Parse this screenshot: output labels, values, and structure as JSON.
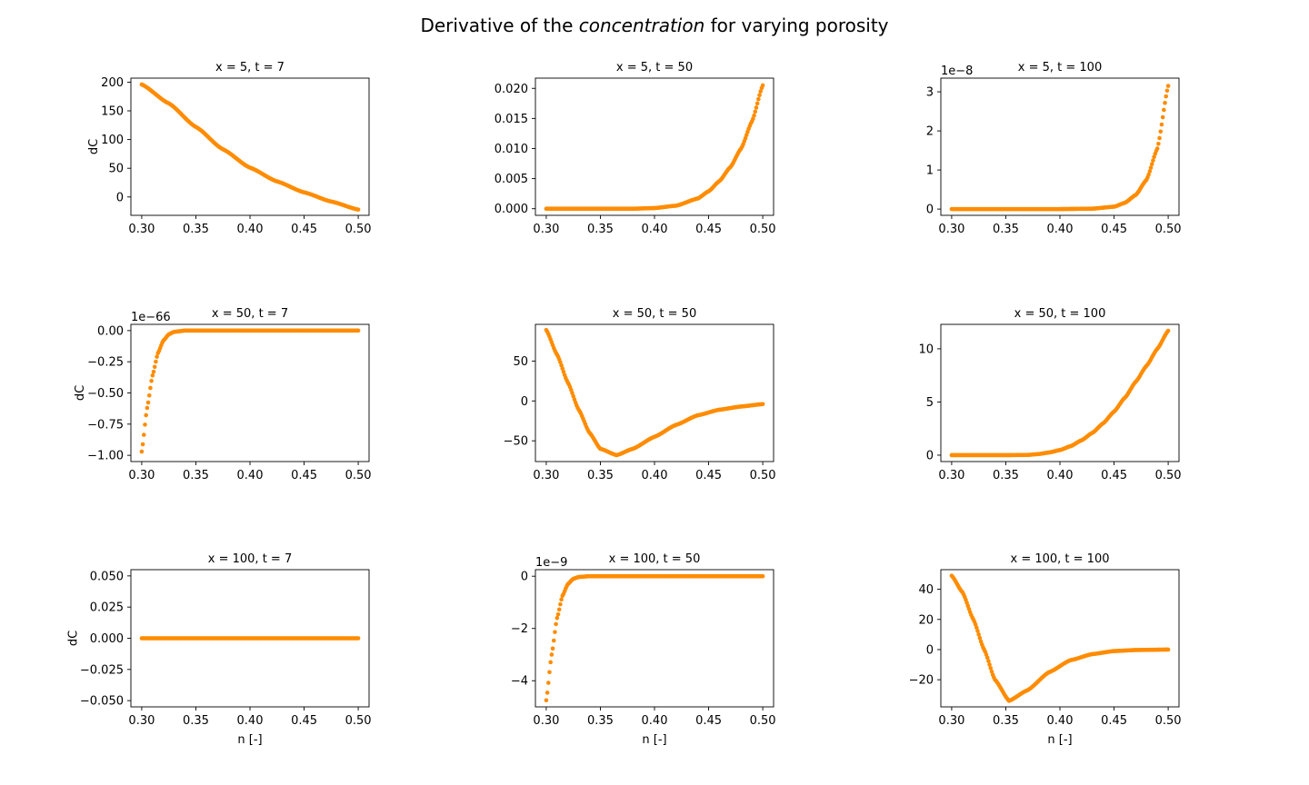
{
  "figure": {
    "title_before": "Derivative of the ",
    "title_emph": "concentration",
    "title_after": " for varying porosity"
  },
  "colors": {
    "marker": "#ff8c00",
    "axes": "#000000",
    "background": "#ffffff"
  },
  "chart_data": [
    {
      "type": "scatter",
      "title": "x = 5, t = 7",
      "xlabel": "",
      "ylabel": "dC",
      "xlim": [
        0.29,
        0.51
      ],
      "ylim": [
        -32,
        207
      ],
      "xticks": [
        0.3,
        0.35,
        0.4,
        0.45,
        0.5
      ],
      "xtick_labels": [
        "0.30",
        "0.35",
        "0.40",
        "0.45",
        "0.50"
      ],
      "yticks": [
        0,
        50,
        100,
        150,
        200
      ],
      "ytick_labels": [
        "0",
        "50",
        "100",
        "150",
        "200"
      ],
      "offset_text": "",
      "x": [
        0.3,
        0.325,
        0.35,
        0.375,
        0.4,
        0.425,
        0.45,
        0.475,
        0.5
      ],
      "y": [
        196,
        163,
        122,
        83,
        51,
        27,
        8,
        -8,
        -22
      ]
    },
    {
      "type": "scatter",
      "title": "x = 5, t = 50",
      "xlabel": "",
      "ylabel": "",
      "xlim": [
        0.29,
        0.51
      ],
      "ylim": [
        -0.0011,
        0.0217
      ],
      "xticks": [
        0.3,
        0.35,
        0.4,
        0.45,
        0.5
      ],
      "xtick_labels": [
        "0.30",
        "0.35",
        "0.40",
        "0.45",
        "0.50"
      ],
      "yticks": [
        0,
        0.005,
        0.01,
        0.015,
        0.02
      ],
      "ytick_labels": [
        "0.000",
        "0.005",
        "0.010",
        "0.015",
        "0.020"
      ],
      "offset_text": "",
      "x": [
        0.3,
        0.35,
        0.38,
        0.4,
        0.42,
        0.44,
        0.45,
        0.46,
        0.47,
        0.48,
        0.49,
        0.5
      ],
      "y": [
        0,
        0,
        0,
        0.0001,
        0.0005,
        0.0017,
        0.0029,
        0.0046,
        0.0069,
        0.01,
        0.0145,
        0.0205
      ]
    },
    {
      "type": "scatter",
      "title": "x = 5, t = 100",
      "xlabel": "",
      "ylabel": "",
      "xlim": [
        0.29,
        0.51
      ],
      "ylim": [
        -0.16,
        3.35
      ],
      "xticks": [
        0.3,
        0.35,
        0.4,
        0.45,
        0.5
      ],
      "xtick_labels": [
        "0.30",
        "0.35",
        "0.40",
        "0.45",
        "0.50"
      ],
      "yticks": [
        0,
        1,
        2,
        3
      ],
      "ytick_labels": [
        "0",
        "1",
        "2",
        "3"
      ],
      "offset_text": "1e−8",
      "x": [
        0.3,
        0.4,
        0.43,
        0.45,
        0.46,
        0.47,
        0.48,
        0.49,
        0.5
      ],
      "y": [
        0,
        0,
        0.01,
        0.06,
        0.16,
        0.36,
        0.75,
        1.55,
        3.15
      ]
    },
    {
      "type": "scatter",
      "title": "x = 50, t = 7",
      "xlabel": "",
      "ylabel": "dC",
      "xlim": [
        0.29,
        0.51
      ],
      "ylim": [
        -1.05,
        0.05
      ],
      "xticks": [
        0.3,
        0.35,
        0.4,
        0.45,
        0.5
      ],
      "xtick_labels": [
        "0.30",
        "0.35",
        "0.40",
        "0.45",
        "0.50"
      ],
      "yticks": [
        -1.0,
        -0.75,
        -0.5,
        -0.25,
        0.0
      ],
      "ytick_labels": [
        "−1.00",
        "−0.75",
        "−0.50",
        "−0.25",
        "0.00"
      ],
      "offset_text": "1e−66",
      "x": [
        0.3,
        0.305,
        0.31,
        0.315,
        0.32,
        0.325,
        0.33,
        0.34,
        0.5
      ],
      "y": [
        -0.97,
        -0.62,
        -0.36,
        -0.18,
        -0.08,
        -0.03,
        -0.01,
        0,
        0
      ]
    },
    {
      "type": "scatter",
      "title": "x = 50, t = 50",
      "xlabel": "",
      "ylabel": "",
      "xlim": [
        0.29,
        0.51
      ],
      "ylim": [
        -76,
        96
      ],
      "xticks": [
        0.3,
        0.35,
        0.4,
        0.45,
        0.5
      ],
      "xtick_labels": [
        "0.30",
        "0.35",
        "0.40",
        "0.45",
        "0.50"
      ],
      "yticks": [
        -50,
        0,
        50
      ],
      "ytick_labels": [
        "−50",
        "0",
        "50"
      ],
      "offset_text": "",
      "x": [
        0.3,
        0.31,
        0.32,
        0.33,
        0.34,
        0.35,
        0.365,
        0.38,
        0.4,
        0.42,
        0.44,
        0.46,
        0.48,
        0.5
      ],
      "y": [
        89,
        58,
        23,
        -11,
        -40,
        -60,
        -68,
        -60,
        -45,
        -30,
        -18,
        -11,
        -7,
        -4
      ]
    },
    {
      "type": "scatter",
      "title": "x = 50, t = 100",
      "xlabel": "",
      "ylabel": "",
      "xlim": [
        0.29,
        0.51
      ],
      "ylim": [
        -0.6,
        12.3
      ],
      "xticks": [
        0.3,
        0.35,
        0.4,
        0.45,
        0.5
      ],
      "xtick_labels": [
        "0.30",
        "0.35",
        "0.40",
        "0.45",
        "0.50"
      ],
      "yticks": [
        0,
        5,
        10
      ],
      "ytick_labels": [
        "0",
        "5",
        "10"
      ],
      "offset_text": "",
      "x": [
        0.3,
        0.35,
        0.37,
        0.38,
        0.39,
        0.4,
        0.41,
        0.42,
        0.43,
        0.44,
        0.45,
        0.46,
        0.47,
        0.48,
        0.49,
        0.5
      ],
      "y": [
        0,
        0,
        0.02,
        0.1,
        0.25,
        0.48,
        0.85,
        1.4,
        2.1,
        3.0,
        4.1,
        5.4,
        6.9,
        8.4,
        10.0,
        11.7
      ]
    },
    {
      "type": "scatter",
      "title": "x = 100, t = 7",
      "xlabel": "n [-]",
      "ylabel": "dC",
      "xlim": [
        0.29,
        0.51
      ],
      "ylim": [
        -0.055,
        0.055
      ],
      "xticks": [
        0.3,
        0.35,
        0.4,
        0.45,
        0.5
      ],
      "xtick_labels": [
        "0.30",
        "0.35",
        "0.40",
        "0.45",
        "0.50"
      ],
      "yticks": [
        -0.05,
        -0.025,
        0,
        0.025,
        0.05
      ],
      "ytick_labels": [
        "−0.050",
        "−0.025",
        "0.000",
        "0.025",
        "0.050"
      ],
      "offset_text": "",
      "x": [
        0.3,
        0.5
      ],
      "y": [
        0,
        0
      ]
    },
    {
      "type": "scatter",
      "title": "x = 100, t = 50",
      "xlabel": "n [-]",
      "ylabel": "",
      "xlim": [
        0.29,
        0.51
      ],
      "ylim": [
        -5.0,
        0.25
      ],
      "xticks": [
        0.3,
        0.35,
        0.4,
        0.45,
        0.5
      ],
      "xtick_labels": [
        "0.30",
        "0.35",
        "0.40",
        "0.45",
        "0.50"
      ],
      "yticks": [
        -4,
        -2,
        0
      ],
      "ytick_labels": [
        "−4",
        "−2",
        "0"
      ],
      "offset_text": "1e−9",
      "x": [
        0.3,
        0.305,
        0.31,
        0.315,
        0.32,
        0.325,
        0.33,
        0.34,
        0.5
      ],
      "y": [
        -4.75,
        -3.0,
        -1.6,
        -0.75,
        -0.3,
        -0.1,
        -0.03,
        0,
        0
      ]
    },
    {
      "type": "scatter",
      "title": "x = 100, t = 100",
      "xlabel": "n [-]",
      "ylabel": "",
      "xlim": [
        0.29,
        0.51
      ],
      "ylim": [
        -38,
        53
      ],
      "xticks": [
        0.3,
        0.35,
        0.4,
        0.45,
        0.5
      ],
      "xtick_labels": [
        "0.30",
        "0.35",
        "0.40",
        "0.45",
        "0.50"
      ],
      "yticks": [
        -20,
        0,
        20,
        40
      ],
      "ytick_labels": [
        "−20",
        "0",
        "20",
        "40"
      ],
      "offset_text": "",
      "x": [
        0.3,
        0.31,
        0.32,
        0.33,
        0.34,
        0.353,
        0.37,
        0.39,
        0.41,
        0.43,
        0.45,
        0.47,
        0.5
      ],
      "y": [
        49,
        38,
        20,
        0,
        -20,
        -34,
        -27,
        -15,
        -7,
        -3,
        -1,
        -0.3,
        0
      ]
    }
  ]
}
